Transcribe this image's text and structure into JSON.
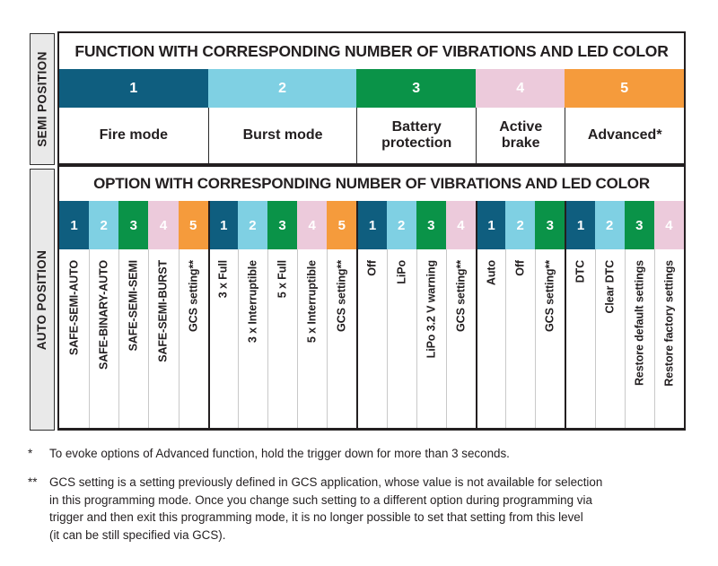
{
  "palette": {
    "teal": "#0f5e7f",
    "light_blue": "#7fd0e3",
    "green": "#0a9348",
    "pink": "#eccadb",
    "orange": "#f59b3c",
    "sidebar_bg": "#e9e9e9",
    "border": "#231f20"
  },
  "sidebar": {
    "semi_label": "SEMI POSITION",
    "auto_label": "AUTO POSITION"
  },
  "semi_section": {
    "header": "FUNCTION WITH CORRESPONDING NUMBER OF VIBRATIONS AND LED COLOR",
    "functions": [
      {
        "num": "1",
        "label": "Fire mode",
        "color": "#0f5e7f",
        "span": 5
      },
      {
        "num": "2",
        "label": "Burst mode",
        "color": "#7fd0e3",
        "span": 5
      },
      {
        "num": "3",
        "label": "Battery protection",
        "color": "#0a9348",
        "span": 4
      },
      {
        "num": "4",
        "label": "Active brake",
        "color": "#eccadb",
        "span": 3
      },
      {
        "num": "5",
        "label": "Advanced*",
        "color": "#f59b3c",
        "span": 4
      }
    ]
  },
  "auto_section": {
    "header": "OPTION WITH CORRESPONDING NUMBER OF VIBRATIONS AND LED COLOR",
    "options": [
      {
        "num": "1",
        "label": "SAFE-SEMI-AUTO",
        "color": "#0f5e7f"
      },
      {
        "num": "2",
        "label": "SAFE-BINARY-AUTO",
        "color": "#7fd0e3"
      },
      {
        "num": "3",
        "label": "SAFE-SEMI-SEMI",
        "color": "#0a9348"
      },
      {
        "num": "4",
        "label": "SAFE-SEMI-BURST",
        "color": "#eccadb"
      },
      {
        "num": "5",
        "label": "GCS setting**",
        "color": "#f59b3c"
      },
      {
        "num": "1",
        "label": "3 x Full",
        "color": "#0f5e7f"
      },
      {
        "num": "2",
        "label": "3 x Interruptible",
        "color": "#7fd0e3"
      },
      {
        "num": "3",
        "label": "5 x Full",
        "color": "#0a9348"
      },
      {
        "num": "4",
        "label": "5 x Interruptible",
        "color": "#eccadb"
      },
      {
        "num": "5",
        "label": "GCS setting**",
        "color": "#f59b3c"
      },
      {
        "num": "1",
        "label": "Off",
        "color": "#0f5e7f"
      },
      {
        "num": "2",
        "label": "LiPo",
        "color": "#7fd0e3"
      },
      {
        "num": "3",
        "label": "LiPo 3.2 V warning",
        "color": "#0a9348"
      },
      {
        "num": "4",
        "label": "GCS setting**",
        "color": "#eccadb"
      },
      {
        "num": "1",
        "label": "Auto",
        "color": "#0f5e7f"
      },
      {
        "num": "2",
        "label": "Off",
        "color": "#7fd0e3"
      },
      {
        "num": "3",
        "label": "GCS setting**",
        "color": "#0a9348"
      },
      {
        "num": "1",
        "label": "DTC",
        "color": "#0f5e7f"
      },
      {
        "num": "2",
        "label": "Clear DTC",
        "color": "#7fd0e3"
      },
      {
        "num": "3",
        "label": "Restore default settings",
        "color": "#0a9348"
      },
      {
        "num": "4",
        "label": "Restore factory settings",
        "color": "#eccadb"
      }
    ]
  },
  "footnotes": {
    "f1_marker": "*",
    "f1_text": "To evoke options of Advanced function, hold the trigger down for more than 3 seconds.",
    "f2_marker": "**",
    "f2_line1": "GCS setting is a setting previously defined in GCS application, whose value is not available for selection",
    "f2_line2": "in this programming mode. Once you change such setting to a different option during programming via",
    "f2_line3": "trigger and then exit this programming mode, it is no longer possible to set that setting from this level",
    "f2_line4": "(it can be still specified via GCS)."
  }
}
